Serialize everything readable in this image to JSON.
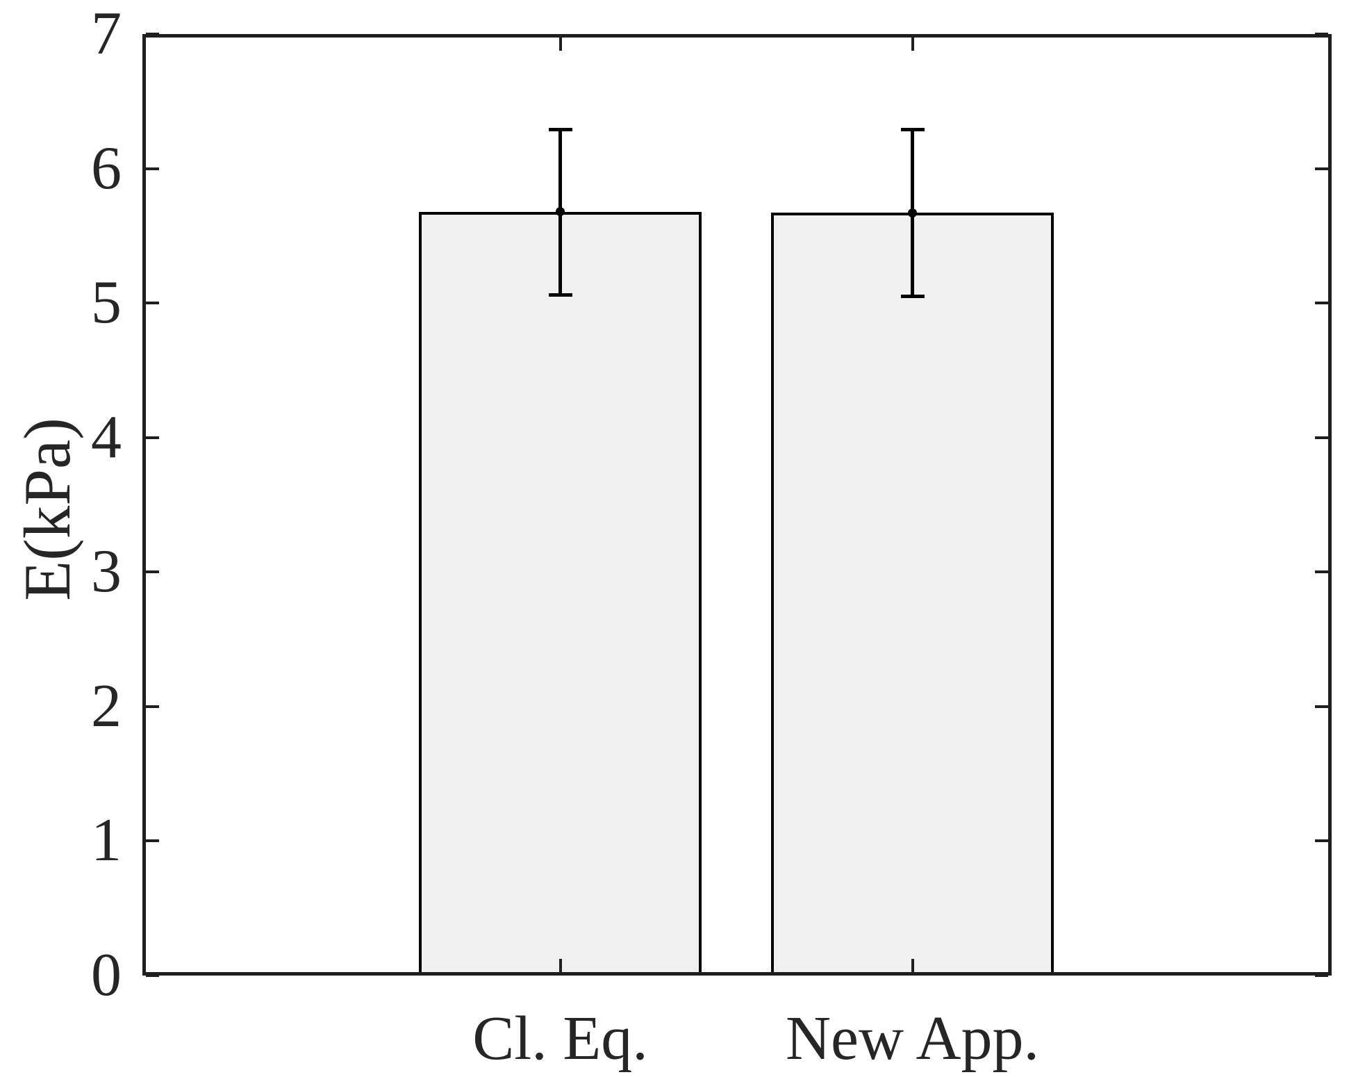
{
  "figure": {
    "background_color": "#ffffff",
    "text_color": "#262626",
    "axis_color": "#1f1f1f",
    "bar_fill_color": "#f0f0f0",
    "bar_edge_color": "#000000",
    "errorbar_color": "#000000"
  },
  "chart_data": {
    "type": "bar",
    "categories": [
      "Cl. Eq.",
      "New App."
    ],
    "values": [
      5.68,
      5.67
    ],
    "error_high": [
      6.29,
      6.29
    ],
    "error_low": [
      5.06,
      5.05
    ],
    "title": "",
    "xlabel": "",
    "ylabel": "E(kPa)",
    "ylim": [
      0,
      7
    ],
    "yticks": [
      0,
      1,
      2,
      3,
      4,
      5,
      6,
      7
    ],
    "ytick_labels": [
      "0",
      "1",
      "2",
      "3",
      "4",
      "5",
      "6",
      "7"
    ],
    "grid": false,
    "legend": null,
    "box": true,
    "tick_direction": "in",
    "marker": "dot-at-bar-top"
  }
}
